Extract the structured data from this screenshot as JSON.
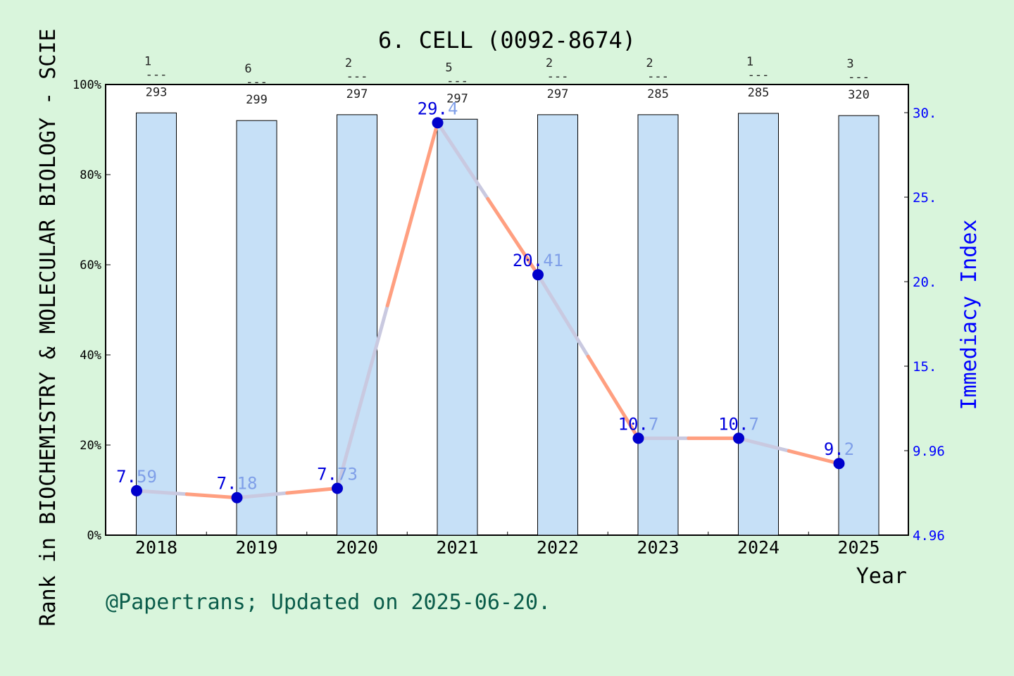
{
  "colors": {
    "background": "#d9f5dc",
    "bar_fill": "#c6e0f7",
    "bar_stroke": "#000000",
    "line_primary": "#ff9f80",
    "line_secondary": "#c9c9e0",
    "point": "#0000cc",
    "label_blue": "#0000dd",
    "label_light": "#7f9fe8",
    "right_axis": "#0000ff",
    "footer": "#0a5c4a",
    "text": "#000000"
  },
  "chart_data": {
    "type": "bar",
    "title": "6. CELL (0092-8674)",
    "xlabel": "Year",
    "ylabel_left": "Rank in BIOCHEMISTRY & MOLECULAR BIOLOGY - SCIE",
    "ylabel_right": "Immediacy Index",
    "footer": "@Papertrans; Updated on 2025-06-20.",
    "categories": [
      "2018",
      "2019",
      "2020",
      "2021",
      "2022",
      "2023",
      "2024",
      "2025"
    ],
    "left_axis": {
      "ylim": [
        0,
        100
      ],
      "ticks": [
        0,
        20,
        40,
        60,
        80,
        100
      ],
      "tick_labels": [
        "0%",
        "20%",
        "40%",
        "60%",
        "80%",
        "100%"
      ]
    },
    "right_axis": {
      "ticks": [
        4.96,
        9.96,
        15,
        20,
        25,
        30
      ],
      "tick_labels": [
        "4.96",
        "9.96",
        "15.",
        "20.",
        "25.",
        "30."
      ]
    },
    "series": [
      {
        "kind": "bar",
        "values": [
          93.7,
          92.0,
          93.3,
          92.3,
          93.3,
          93.3,
          93.6,
          93.1
        ]
      },
      {
        "kind": "line",
        "values": [
          7.59,
          7.18,
          7.73,
          29.4,
          20.41,
          10.7,
          10.7,
          9.2
        ],
        "labels": [
          "7.59",
          "7.18",
          "7.73",
          "29.4",
          "20.41",
          "10.7",
          "10.7",
          "9.2"
        ]
      }
    ],
    "rank_annotations": [
      {
        "rank": "1",
        "total": "293"
      },
      {
        "rank": "6",
        "total": "299"
      },
      {
        "rank": "2",
        "total": "297"
      },
      {
        "rank": "5",
        "total": "297"
      },
      {
        "rank": "2",
        "total": "297"
      },
      {
        "rank": "2",
        "total": "285"
      },
      {
        "rank": "1",
        "total": "285"
      },
      {
        "rank": "3",
        "total": "320"
      }
    ],
    "rank_separator": "---",
    "grid": false,
    "legend": "none"
  }
}
